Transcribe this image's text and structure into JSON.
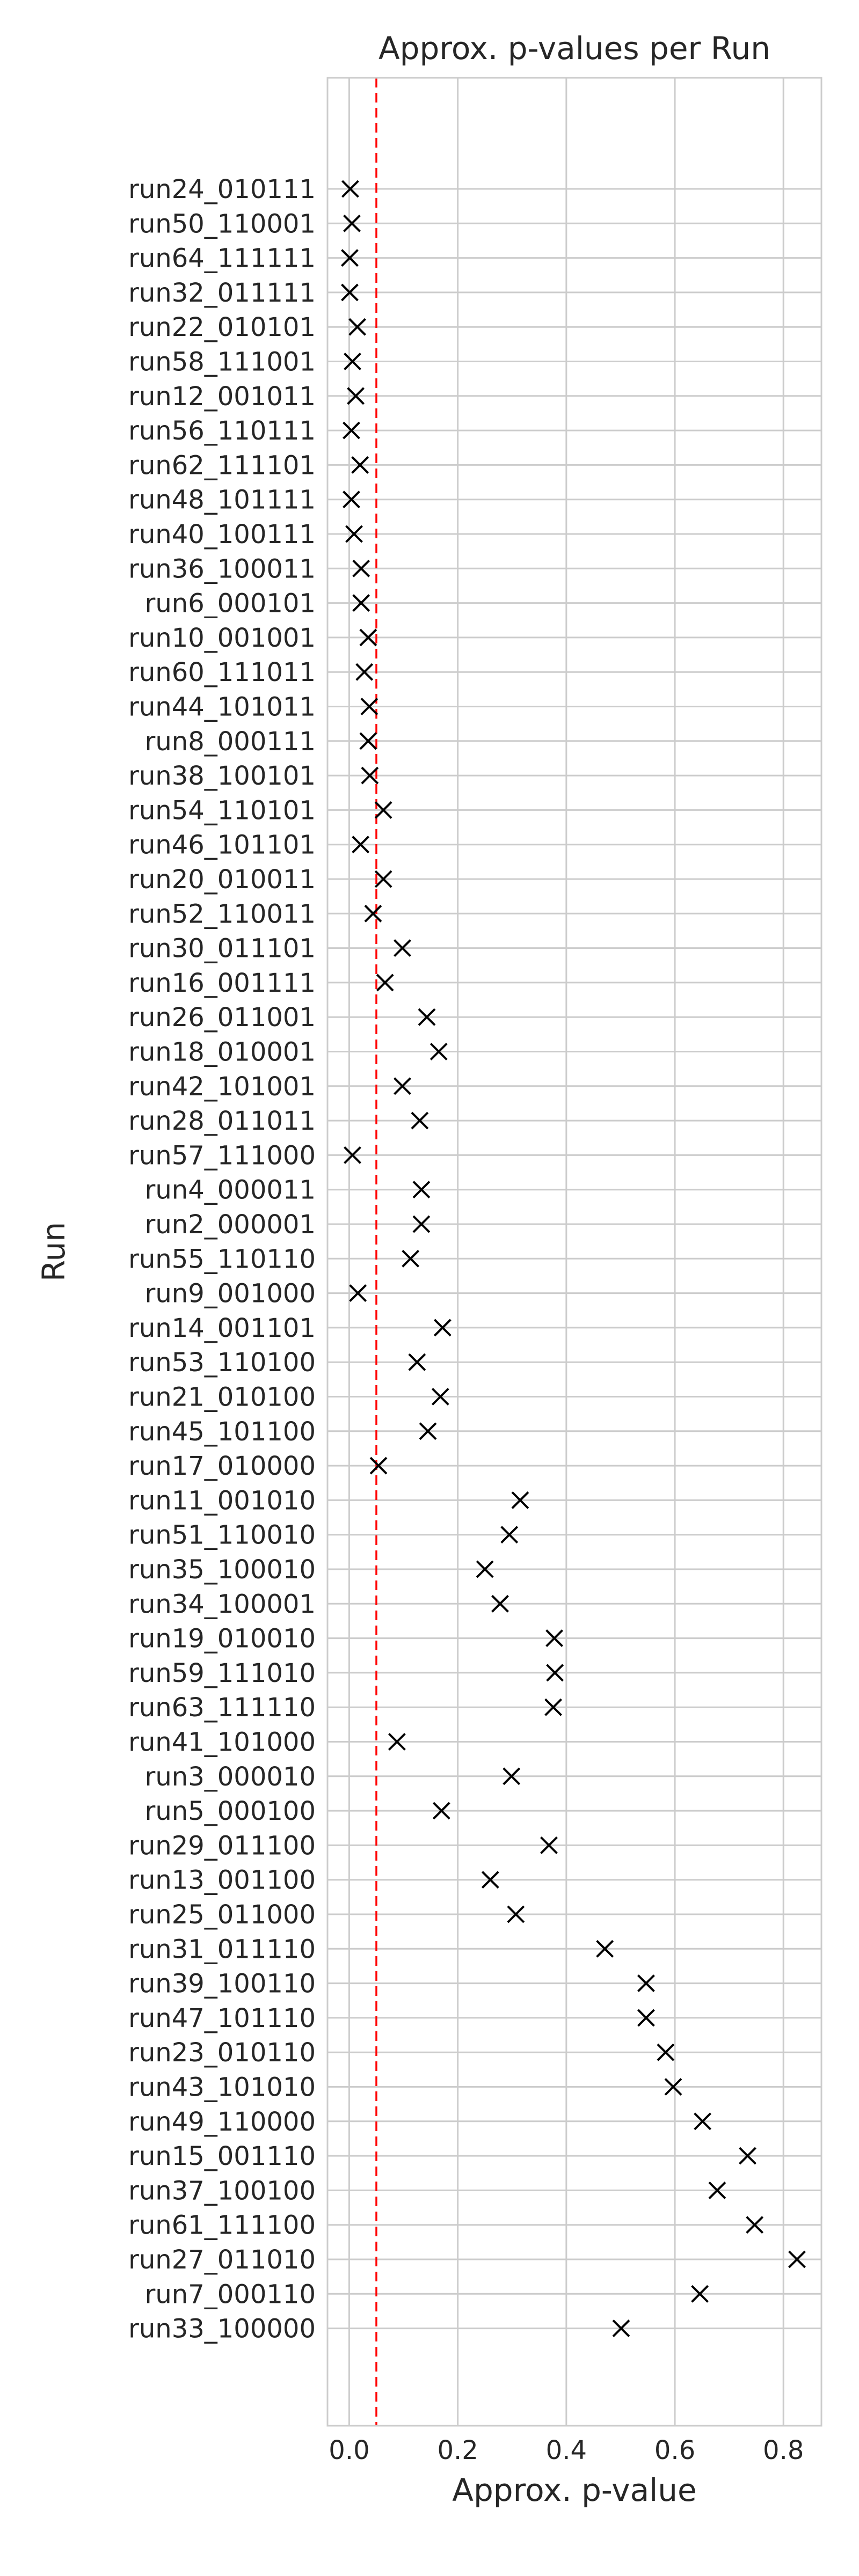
{
  "chart_data": {
    "type": "scatter",
    "title": "Approx. p-values per Run",
    "xlabel": "Approx. p-value",
    "ylabel": "Run",
    "xlim": [
      -0.04,
      0.87
    ],
    "xticks": [
      0.0,
      0.2,
      0.4,
      0.6,
      0.8
    ],
    "xtick_labels": [
      "0.0",
      "0.2",
      "0.4",
      "0.6",
      "0.8"
    ],
    "grid": true,
    "marker": "x",
    "marker_color": "#000000",
    "reference_line": {
      "x": 0.05,
      "color": "#ff0000",
      "style": "dashed"
    },
    "categories": [
      "run24_010111",
      "run50_110001",
      "run64_111111",
      "run32_011111",
      "run22_010101",
      "run58_111001",
      "run12_001011",
      "run56_110111",
      "run62_111101",
      "run48_101111",
      "run40_100111",
      "run36_100011",
      "run6_000101",
      "run10_001001",
      "run60_111011",
      "run44_101011",
      "run8_000111",
      "run38_100101",
      "run54_110101",
      "run46_101101",
      "run20_010011",
      "run52_110011",
      "run30_011101",
      "run16_001111",
      "run26_011001",
      "run18_010001",
      "run42_101001",
      "run28_011011",
      "run57_111000",
      "run4_000011",
      "run2_000001",
      "run55_110110",
      "run9_001000",
      "run14_001101",
      "run53_110100",
      "run21_010100",
      "run45_101100",
      "run17_010000",
      "run11_001010",
      "run51_110010",
      "run35_100010",
      "run34_100001",
      "run19_010010",
      "run59_111010",
      "run63_111110",
      "run41_101000",
      "run3_000010",
      "run5_000100",
      "run29_011100",
      "run13_001100",
      "run25_011000",
      "run31_011110",
      "run39_100110",
      "run47_101110",
      "run23_010110",
      "run43_101010",
      "run49_110000",
      "run15_001110",
      "run37_100100",
      "run61_111100",
      "run27_011010",
      "run7_000110",
      "run33_100000"
    ],
    "values": [
      0.002,
      0.005,
      0.001,
      0.001,
      0.015,
      0.006,
      0.012,
      0.004,
      0.02,
      0.004,
      0.009,
      0.022,
      0.022,
      0.035,
      0.028,
      0.037,
      0.035,
      0.038,
      0.063,
      0.021,
      0.063,
      0.044,
      0.098,
      0.066,
      0.143,
      0.165,
      0.098,
      0.13,
      0.006,
      0.133,
      0.133,
      0.113,
      0.016,
      0.172,
      0.125,
      0.168,
      0.145,
      0.054,
      0.315,
      0.295,
      0.25,
      0.278,
      0.378,
      0.379,
      0.376,
      0.088,
      0.299,
      0.17,
      0.368,
      0.26,
      0.307,
      0.471,
      0.547,
      0.547,
      0.583,
      0.597,
      0.651,
      0.734,
      0.678,
      0.747,
      0.825,
      0.646,
      0.501
    ]
  }
}
